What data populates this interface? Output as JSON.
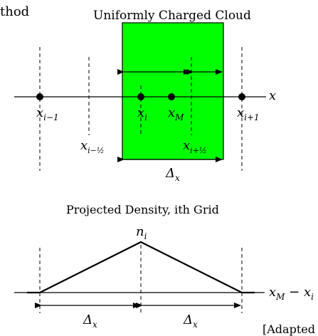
{
  "header": {
    "cropped_title": "thod",
    "cloud_title": "Uniformly Charged Cloud"
  },
  "top": {
    "axis_label": "x",
    "points": {
      "x_im1": {
        "base": "x",
        "sub": "i−1"
      },
      "x_imh": {
        "base": "x",
        "sub": "i−½"
      },
      "x_i": {
        "base": "x",
        "sub": "i"
      },
      "x_M": {
        "base": "x",
        "sub": "M"
      },
      "x_iph": {
        "base": "x",
        "sub": "i+½"
      },
      "x_ip1": {
        "base": "x",
        "sub": "i+1"
      }
    },
    "width_label": {
      "base": "Δ",
      "sub": "x"
    }
  },
  "bottom": {
    "title": "Projected Density, ith Grid",
    "peak_label": {
      "base": "n",
      "sub": "i"
    },
    "axis_label": "x",
    "axis_sub": "M",
    "axis_rest": " − x",
    "axis_rest_sub": "i",
    "left_width": {
      "base": "Δ",
      "sub": "x"
    },
    "right_width": {
      "base": "Δ",
      "sub": "x"
    }
  },
  "footer": {
    "cropped_text": "[Adapted"
  },
  "colors": {
    "cloud_fill": "#00ff00",
    "line": "#000000"
  }
}
